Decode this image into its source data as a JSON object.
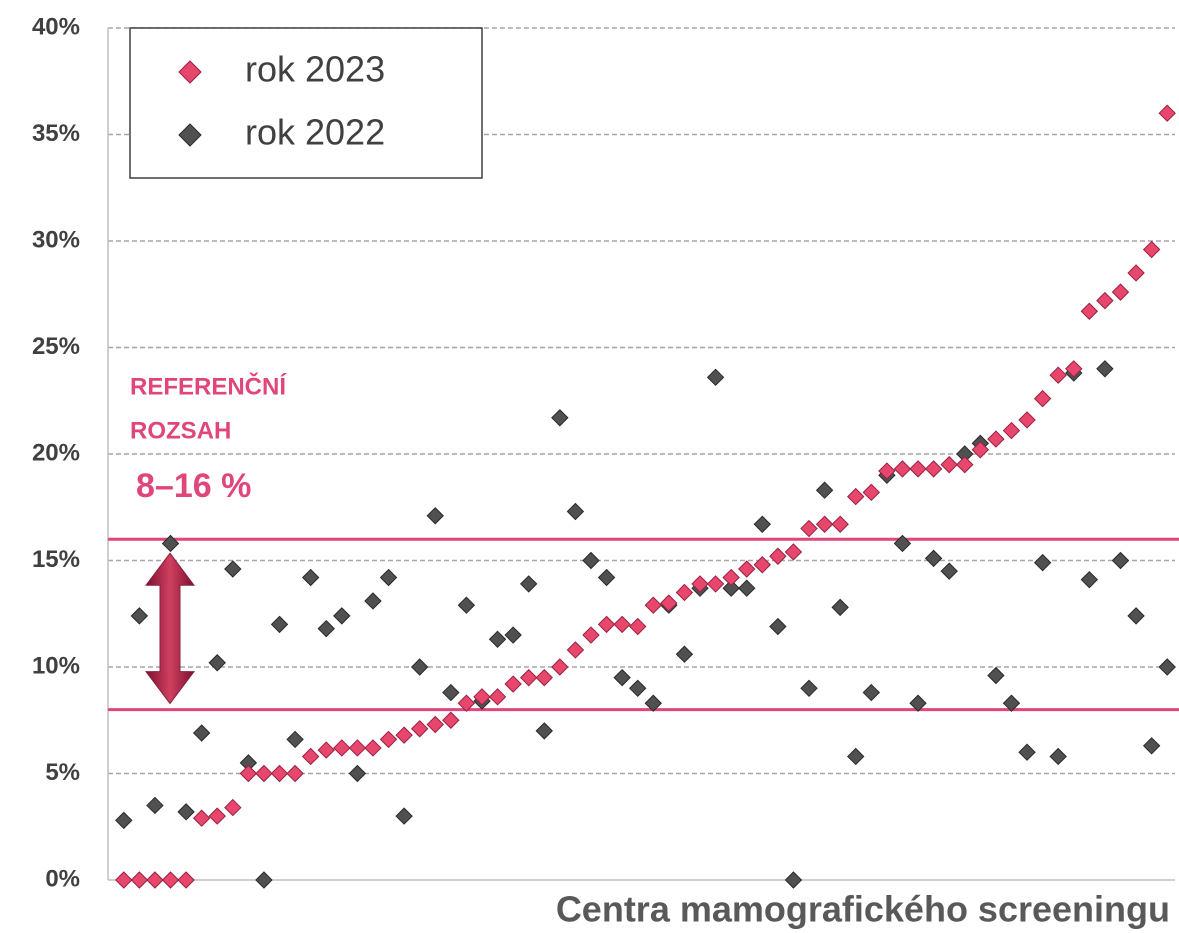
{
  "chart_data": {
    "type": "scatter",
    "x_label": "Centra mamografického screeningu",
    "categories": [
      null,
      null,
      null,
      null,
      null,
      null,
      null,
      null,
      null,
      null,
      null,
      null,
      null,
      null,
      null,
      null,
      null,
      null,
      null,
      null,
      null,
      null,
      null,
      null,
      null,
      null,
      null,
      null,
      null,
      null,
      null,
      null,
      null,
      null,
      null,
      null,
      null,
      null,
      null,
      null,
      null,
      null,
      null,
      null,
      null,
      null,
      null,
      null,
      null,
      null,
      null,
      null,
      null,
      null,
      null,
      null,
      null,
      null,
      null,
      null,
      null,
      null,
      null,
      null,
      null,
      null,
      null,
      null
    ],
    "series": [
      {
        "name": "rok 2023",
        "color": "#e8476d",
        "values": [
          0,
          0,
          0,
          0,
          0,
          2.9,
          3.0,
          3.4,
          5.0,
          5.0,
          5.0,
          5.0,
          5.8,
          6.1,
          6.2,
          6.2,
          6.2,
          6.6,
          6.8,
          7.1,
          7.3,
          7.5,
          8.3,
          8.6,
          8.6,
          9.2,
          9.5,
          9.5,
          10.0,
          10.8,
          11.5,
          12.0,
          12.0,
          11.9,
          12.9,
          13.0,
          13.5,
          13.9,
          13.9,
          14.2,
          14.6,
          14.8,
          15.2,
          15.4,
          16.5,
          16.7,
          16.7,
          18.0,
          18.2,
          19.2,
          19.3,
          19.3,
          19.3,
          19.5,
          19.5,
          20.2,
          20.7,
          21.1,
          21.6,
          22.6,
          23.7,
          24.0,
          26.7,
          27.2,
          27.6,
          28.5,
          29.6,
          36.0
        ]
      },
      {
        "name": "rok 2022",
        "color": "#505050",
        "values": [
          2.8,
          12.4,
          3.5,
          15.8,
          3.2,
          6.9,
          10.2,
          14.6,
          5.5,
          0,
          12.0,
          6.6,
          14.2,
          11.8,
          12.4,
          5.0,
          13.1,
          14.2,
          3.0,
          10.0,
          17.1,
          8.8,
          12.9,
          8.4,
          11.3,
          11.5,
          13.9,
          7.0,
          21.7,
          17.3,
          15.0,
          14.2,
          9.5,
          9.0,
          8.3,
          12.9,
          10.6,
          13.7,
          23.6,
          13.7,
          13.7,
          16.7,
          11.9,
          0,
          9.0,
          18.3,
          12.8,
          5.8,
          8.8,
          19.0,
          15.8,
          8.3,
          15.1,
          14.5,
          20.0,
          20.5,
          9.6,
          8.3,
          6.0,
          14.9,
          5.8,
          23.8,
          14.1,
          24.0,
          15.0,
          12.4,
          6.3,
          10.0
        ]
      }
    ],
    "ylim": [
      0,
      40
    ],
    "yticks": [
      {
        "value": 0,
        "label": "0%"
      },
      {
        "value": 5,
        "label": "5%"
      },
      {
        "value": 10,
        "label": "10%"
      },
      {
        "value": 15,
        "label": "15%"
      },
      {
        "value": 20,
        "label": "20%"
      },
      {
        "value": 25,
        "label": "25%"
      },
      {
        "value": 30,
        "label": "30%"
      },
      {
        "value": 35,
        "label": "35%"
      },
      {
        "value": 40,
        "label": "40%"
      }
    ],
    "grid": true,
    "legend": "upper left",
    "reference_range": [
      8,
      16
    ],
    "reference_color": "#e0457b",
    "annotation": [
      "REFERENČNÍ",
      "ROZSAH",
      "8–16 %"
    ]
  }
}
